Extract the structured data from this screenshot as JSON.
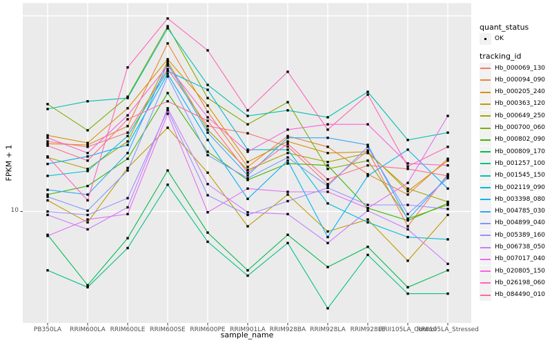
{
  "figure": {
    "background": "#FFFFFF",
    "panel_background": "#EBEBEB",
    "gridline_color": "#FFFFFF",
    "tick_mark_color": "#333333",
    "tick_text_color": "#4D4D4D",
    "point_color": "#000000",
    "legend_key_background": "#F2F2F2"
  },
  "axes": {
    "x": {
      "title": "sample_name"
    },
    "y": {
      "title": "FPKM + 1",
      "scale": "log10",
      "tick_labels": [
        "10"
      ]
    }
  },
  "legend": {
    "quant_status": {
      "title": "quant_status",
      "items": [
        {
          "label": "OK",
          "symbol": "point"
        }
      ]
    },
    "tracking_id": {
      "title": "tracking_id"
    }
  },
  "chart_data": {
    "type": "line",
    "xlabel": "sample_name",
    "ylabel": "FPKM + 1",
    "y_scale": "log10",
    "y_gridline_values": [
      10,
      100
    ],
    "y_tick_labels": [
      "10"
    ],
    "point_shape": "small black square at every data point",
    "x_categories": [
      "PB350LA",
      "RRIM600LA",
      "RRIM600LE",
      "RRIM600SE",
      "RRIM600PE",
      "RRIM901LA",
      "RRIM928BA",
      "RRIM928LA",
      "RRIM928LE",
      "RRII105LA_Control",
      "RRII105LA_Stressed"
    ],
    "series": [
      {
        "tracking_id": "Hb_000069_130",
        "quant_status": "OK",
        "color": "#F8766D",
        "values": [
          22.8,
          21.4,
          25.3,
          53.5,
          27.3,
          25.1,
          21.5,
          13.8,
          20.5,
          8.4,
          15.5
        ]
      },
      {
        "tracking_id": "Hb_000094_090",
        "quant_status": "OK",
        "color": "#EA8331",
        "values": [
          22.2,
          21.9,
          27.3,
          72.3,
          32.3,
          16.9,
          24.3,
          21.4,
          15.5,
          12.2,
          18.6
        ]
      },
      {
        "tracking_id": "Hb_000205_240",
        "quant_status": "OK",
        "color": "#D89000",
        "values": [
          24.5,
          22.4,
          33.7,
          60.0,
          34.8,
          17.9,
          22.8,
          19.9,
          20.2,
          12.7,
          18.2
        ]
      },
      {
        "tracking_id": "Hb_000363_120",
        "quant_status": "OK",
        "color": "#C09B00",
        "values": [
          11.4,
          8.8,
          16.7,
          26.8,
          15.8,
          8.4,
          12.2,
          7.9,
          9.1,
          5.6,
          9.6
        ]
      },
      {
        "tracking_id": "Hb_000649_250",
        "quant_status": "OK",
        "color": "#A3A500",
        "values": [
          18.9,
          16.5,
          22.8,
          58.5,
          26.2,
          16.3,
          19.9,
          17.9,
          19.9,
          13.1,
          11.2
        ]
      },
      {
        "tracking_id": "Hb_000700_060",
        "quant_status": "OK",
        "color": "#7CAE00",
        "values": [
          35.4,
          26.0,
          38.6,
          88.5,
          38.0,
          27.9,
          36.2,
          16.5,
          18.2,
          9.2,
          10.8
        ]
      },
      {
        "tracking_id": "Hb_000802_090",
        "quant_status": "OK",
        "color": "#39B600",
        "values": [
          12.2,
          13.5,
          18.6,
          40.3,
          20.2,
          14.5,
          17.6,
          17.2,
          10.4,
          9.0,
          11.0
        ]
      },
      {
        "tracking_id": "Hb_000809_170",
        "quant_status": "OK",
        "color": "#00BB4E",
        "values": [
          7.6,
          4.2,
          7.3,
          16.2,
          7.8,
          5.0,
          7.6,
          5.2,
          6.6,
          4.1,
          5.0
        ]
      },
      {
        "tracking_id": "Hb_001257_100",
        "quant_status": "OK",
        "color": "#00C087",
        "values": [
          5.0,
          4.1,
          6.5,
          13.7,
          7.0,
          4.7,
          6.9,
          3.2,
          6.0,
          3.8,
          3.8
        ]
      },
      {
        "tracking_id": "Hb_001545_150",
        "quant_status": "OK",
        "color": "#00C0B2",
        "values": [
          33.4,
          36.6,
          38.0,
          86.4,
          44.4,
          30.8,
          32.9,
          30.3,
          40.9,
          23.2,
          25.3
        ]
      },
      {
        "tracking_id": "Hb_002119_090",
        "quant_status": "OK",
        "color": "#00BCD8",
        "values": [
          15.2,
          16.1,
          24.3,
          52.2,
          41.9,
          20.7,
          20.7,
          11.0,
          8.8,
          7.4,
          7.2
        ]
      },
      {
        "tracking_id": "Hb_003398_080",
        "quant_status": "OK",
        "color": "#00B0F6",
        "values": [
          17.5,
          19.1,
          21.9,
          50.6,
          23.2,
          11.6,
          18.2,
          7.4,
          15.2,
          20.7,
          13.1
        ]
      },
      {
        "tracking_id": "Hb_004785_030",
        "quant_status": "OK",
        "color": "#2FA5FF",
        "values": [
          12.9,
          12.2,
          19.9,
          57.1,
          25.3,
          15.3,
          23.8,
          23.8,
          21.9,
          9.1,
          15.2
        ]
      },
      {
        "tracking_id": "Hb_004899_040",
        "quant_status": "OK",
        "color": "#7F96FF",
        "values": [
          11.9,
          10.1,
          16.2,
          49.0,
          19.4,
          14.8,
          18.9,
          13.5,
          21.4,
          9.7,
          14.8
        ]
      },
      {
        "tracking_id": "Hb_005389_160",
        "quant_status": "OK",
        "color": "#9C8DFF",
        "values": [
          10.0,
          9.6,
          11.7,
          32.9,
          12.1,
          9.6,
          11.3,
          13.2,
          10.8,
          10.8,
          10.3
        ]
      },
      {
        "tracking_id": "Hb_006738_050",
        "quant_status": "OK",
        "color": "#C77CFF",
        "values": [
          9.6,
          8.1,
          10.5,
          33.7,
          13.8,
          9.9,
          9.7,
          6.9,
          10.1,
          8.1,
          5.4
        ]
      },
      {
        "tracking_id": "Hb_007017_040",
        "quant_status": "OK",
        "color": "#E76BF3",
        "values": [
          7.5,
          9.1,
          9.7,
          31.6,
          9.9,
          13.1,
          12.6,
          12.6,
          10.4,
          14.0,
          30.8
        ]
      },
      {
        "tracking_id": "Hb_020805_150",
        "quant_status": "OK",
        "color": "#FA62DC",
        "values": [
          23.8,
          19.9,
          31.0,
          55.7,
          30.3,
          20.2,
          26.2,
          27.9,
          27.9,
          17.6,
          17.2
        ]
      },
      {
        "tracking_id": "Hb_026198_060",
        "quant_status": "OK",
        "color": "#FF63B6",
        "values": [
          19.1,
          11.4,
          54.5,
          97.0,
          66.6,
          32.9,
          51.8,
          26.2,
          39.6,
          17.0,
          21.4
        ]
      },
      {
        "tracking_id": "Hb_084490_010",
        "quant_status": "OK",
        "color": "#FF6C91",
        "values": [
          21.7,
          18.2,
          29.6,
          36.6,
          29.1,
          15.8,
          22.2,
          14.6,
          17.2,
          16.5,
          15.2
        ]
      }
    ]
  }
}
